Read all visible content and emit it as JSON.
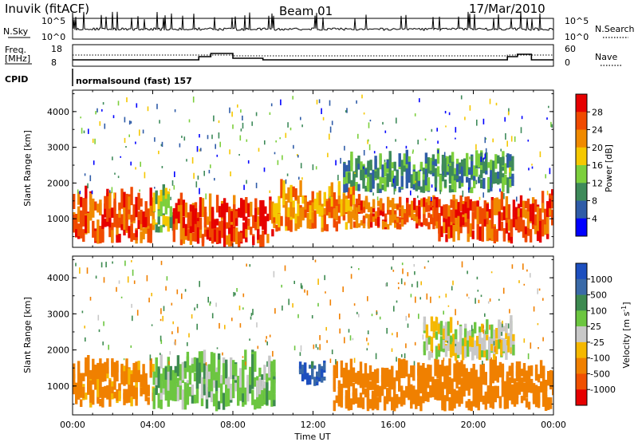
{
  "header": {
    "station": "Inuvik (fitACF)",
    "beam": "Beam 01",
    "date": "17/Mar/2010"
  },
  "top_panels": {
    "nsky_label": "N.Sky",
    "nsearch_label": "N.Search",
    "nsky_ticks": [
      "10^5",
      "10^0"
    ],
    "nsearch_ticks": [
      "10^5",
      "10^0"
    ],
    "freq_label_line1": "Freq.",
    "freq_label_line2": "[MHz]",
    "freq_ticks": [
      "18",
      "8"
    ],
    "nave_label": "Nave",
    "nave_ticks": [
      "60",
      "0"
    ],
    "cpid_label": "CPID",
    "cpid_text": "normalsound (fast) 157"
  },
  "colors": {
    "power_scale": [
      "#0000ff",
      "#2f5ca8",
      "#3e8a5a",
      "#7ccf3c",
      "#f5c800",
      "#f08a00",
      "#f04a00",
      "#e60000"
    ],
    "velocity_scale": [
      "#1d4fbf",
      "#3a6aa8",
      "#3d8a50",
      "#6cc640",
      "#c8c8c8",
      "#f5b800",
      "#f08000",
      "#f05000",
      "#e60000"
    ]
  },
  "chart_data": [
    {
      "type": "heatmap",
      "panel": "power",
      "xlabel": "",
      "ylabel": "Slant Range [km]",
      "x_ticks": [
        "00:00",
        "04:00",
        "08:00",
        "12:00",
        "16:00",
        "20:00",
        "00:00"
      ],
      "y_ticks": [
        "4000",
        "3000",
        "2000",
        "1000"
      ],
      "ylim": [
        200,
        4600
      ],
      "xlim_hours": [
        0,
        24
      ],
      "colorbar": {
        "label": "Power [dB]",
        "ticks": [
          "28",
          "24",
          "20",
          "16",
          "12",
          "8",
          "4"
        ],
        "range": [
          0,
          32
        ]
      },
      "echo_regions": [
        {
          "t0": 0.0,
          "t1": 4.0,
          "r0": 300,
          "r1": 1600,
          "level": 26
        },
        {
          "t0": 4.0,
          "t1": 5.0,
          "r0": 600,
          "r1": 1700,
          "level": 14
        },
        {
          "t0": 5.0,
          "t1": 10.0,
          "r0": 200,
          "r1": 1400,
          "level": 27
        },
        {
          "t0": 10.0,
          "t1": 14.0,
          "r0": 600,
          "r1": 1800,
          "level": 22
        },
        {
          "t0": 14.0,
          "t1": 18.0,
          "r0": 700,
          "r1": 1500,
          "level": 25
        },
        {
          "t0": 18.0,
          "t1": 24.0,
          "r0": 300,
          "r1": 1500,
          "level": 26
        },
        {
          "t0": 13.5,
          "t1": 22.0,
          "r0": 1700,
          "r1": 2700,
          "level": 10
        }
      ]
    },
    {
      "type": "heatmap",
      "panel": "velocity",
      "xlabel": "Time UT",
      "ylabel": "Slant Range [km]",
      "x_ticks": [
        "00:00",
        "04:00",
        "08:00",
        "12:00",
        "16:00",
        "20:00",
        "00:00"
      ],
      "y_ticks": [
        "4000",
        "3000",
        "2000",
        "1000"
      ],
      "ylim": [
        200,
        4600
      ],
      "xlim_hours": [
        0,
        24
      ],
      "colorbar": {
        "label": "Velocity [m s^-1]",
        "ticks": [
          "1000",
          "500",
          "100",
          "25",
          "-25",
          "-100",
          "-500",
          "-1000"
        ]
      },
      "echo_regions": [
        {
          "t0": 0.0,
          "t1": 4.0,
          "r0": 400,
          "r1": 1600,
          "level": -150
        },
        {
          "t0": 4.0,
          "t1": 10.0,
          "r0": 300,
          "r1": 1700,
          "level": 60
        },
        {
          "t0": 11.3,
          "t1": 12.5,
          "r0": 1000,
          "r1": 1600,
          "level": 900
        },
        {
          "t0": 13.0,
          "t1": 24.0,
          "r0": 300,
          "r1": 1500,
          "level": -300
        },
        {
          "t0": 17.5,
          "t1": 22.0,
          "r0": 1700,
          "r1": 2700,
          "level": 0
        }
      ]
    }
  ]
}
